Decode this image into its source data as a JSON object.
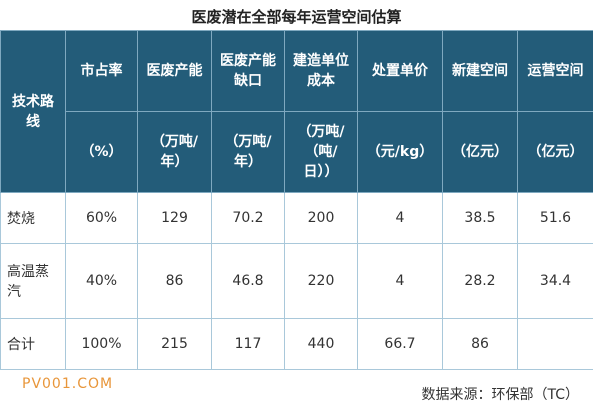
{
  "header": {
    "title": "医废潜在全部每年运营空间估算"
  },
  "table": {
    "columns": [
      "技术路线",
      "市占率",
      "医废产能",
      "医废产能缺口",
      "建造单位成本",
      "处置单价",
      "新建空间",
      "运营空间"
    ],
    "units": [
      "（%）",
      "（万吨/年）",
      "（万吨/年）",
      "（万吨/（吨/日））",
      "（元/kg）",
      "（亿元）",
      "（亿元）"
    ],
    "rows": [
      [
        "焚烧",
        "60%",
        "129",
        "70.2",
        "200",
        "4",
        "38.5",
        "51.6"
      ],
      [
        "高温蒸汽",
        "40%",
        "86",
        "46.8",
        "220",
        "4",
        "28.2",
        "34.4"
      ],
      [
        "合计",
        "100%",
        "215",
        "117",
        "440",
        "66.7",
        "86",
        null
      ]
    ]
  },
  "footer": {
    "watermark": "PV001.COM",
    "source": "数据来源：环保部（TC）"
  }
}
